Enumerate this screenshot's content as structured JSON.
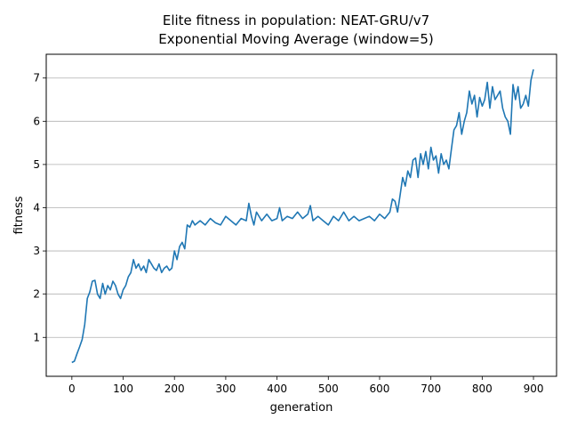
{
  "chart_data": {
    "type": "line",
    "title": "Elite fitness in population: NEAT-GRU/v7",
    "subtitle": "Exponential Moving Average (window=5)",
    "xlabel": "generation",
    "ylabel": "fitness",
    "xlim": [
      -50,
      945
    ],
    "ylim": [
      0.1,
      7.55
    ],
    "xticks": [
      0,
      100,
      200,
      300,
      400,
      500,
      600,
      700,
      800,
      900
    ],
    "yticks": [
      1,
      2,
      3,
      4,
      5,
      6,
      7
    ],
    "grid": "horizontal",
    "color": "#1f77b4",
    "series": [
      {
        "x": [
          0,
          5,
          10,
          15,
          20,
          25,
          30,
          35,
          40,
          45,
          50,
          55,
          60,
          65,
          70,
          75,
          80,
          85,
          90,
          95,
          100,
          105,
          110,
          115,
          120,
          125,
          130,
          135,
          140,
          145,
          150,
          155,
          160,
          165,
          170,
          175,
          180,
          185,
          190,
          195,
          200,
          205,
          210,
          215,
          220,
          225,
          230,
          235,
          240,
          245,
          250,
          260,
          270,
          280,
          290,
          300,
          310,
          320,
          330,
          340,
          345,
          350,
          355,
          360,
          370,
          380,
          390,
          400,
          405,
          410,
          420,
          430,
          440,
          450,
          460,
          465,
          470,
          480,
          490,
          500,
          510,
          520,
          530,
          540,
          550,
          560,
          570,
          580,
          590,
          600,
          610,
          620,
          625,
          630,
          635,
          640,
          645,
          650,
          655,
          660,
          665,
          670,
          675,
          680,
          685,
          690,
          695,
          700,
          705,
          710,
          715,
          720,
          725,
          730,
          735,
          740,
          745,
          750,
          755,
          760,
          765,
          770,
          775,
          780,
          785,
          790,
          795,
          800,
          805,
          810,
          815,
          820,
          825,
          830,
          835,
          840,
          845,
          850,
          855,
          860,
          865,
          870,
          875,
          880,
          885,
          890,
          895,
          900
        ],
        "y": [
          0.42,
          0.45,
          0.62,
          0.78,
          0.95,
          1.3,
          1.9,
          2.05,
          2.3,
          2.32,
          2.0,
          1.9,
          2.25,
          2.0,
          2.2,
          2.1,
          2.3,
          2.2,
          2.0,
          1.9,
          2.1,
          2.2,
          2.4,
          2.5,
          2.8,
          2.6,
          2.7,
          2.55,
          2.65,
          2.5,
          2.8,
          2.7,
          2.6,
          2.55,
          2.7,
          2.5,
          2.6,
          2.65,
          2.55,
          2.6,
          3.0,
          2.8,
          3.1,
          3.2,
          3.05,
          3.6,
          3.55,
          3.7,
          3.6,
          3.65,
          3.7,
          3.6,
          3.75,
          3.65,
          3.6,
          3.8,
          3.7,
          3.6,
          3.75,
          3.7,
          4.1,
          3.8,
          3.6,
          3.9,
          3.7,
          3.85,
          3.7,
          3.75,
          4.0,
          3.7,
          3.8,
          3.75,
          3.9,
          3.75,
          3.85,
          4.05,
          3.7,
          3.8,
          3.7,
          3.6,
          3.8,
          3.7,
          3.9,
          3.7,
          3.8,
          3.7,
          3.75,
          3.8,
          3.7,
          3.85,
          3.75,
          3.9,
          4.2,
          4.15,
          3.9,
          4.3,
          4.7,
          4.5,
          4.85,
          4.7,
          5.1,
          5.15,
          4.7,
          5.25,
          5.0,
          5.3,
          4.9,
          5.4,
          5.1,
          5.2,
          4.8,
          5.25,
          5.0,
          5.1,
          4.9,
          5.35,
          5.8,
          5.9,
          6.2,
          5.7,
          6.0,
          6.2,
          6.7,
          6.4,
          6.6,
          6.1,
          6.55,
          6.35,
          6.5,
          6.9,
          6.3,
          6.8,
          6.5,
          6.6,
          6.7,
          6.3,
          6.1,
          6.0,
          5.7,
          6.85,
          6.5,
          6.8,
          6.3,
          6.4,
          6.6,
          6.35,
          6.95,
          7.2
        ]
      }
    ]
  }
}
